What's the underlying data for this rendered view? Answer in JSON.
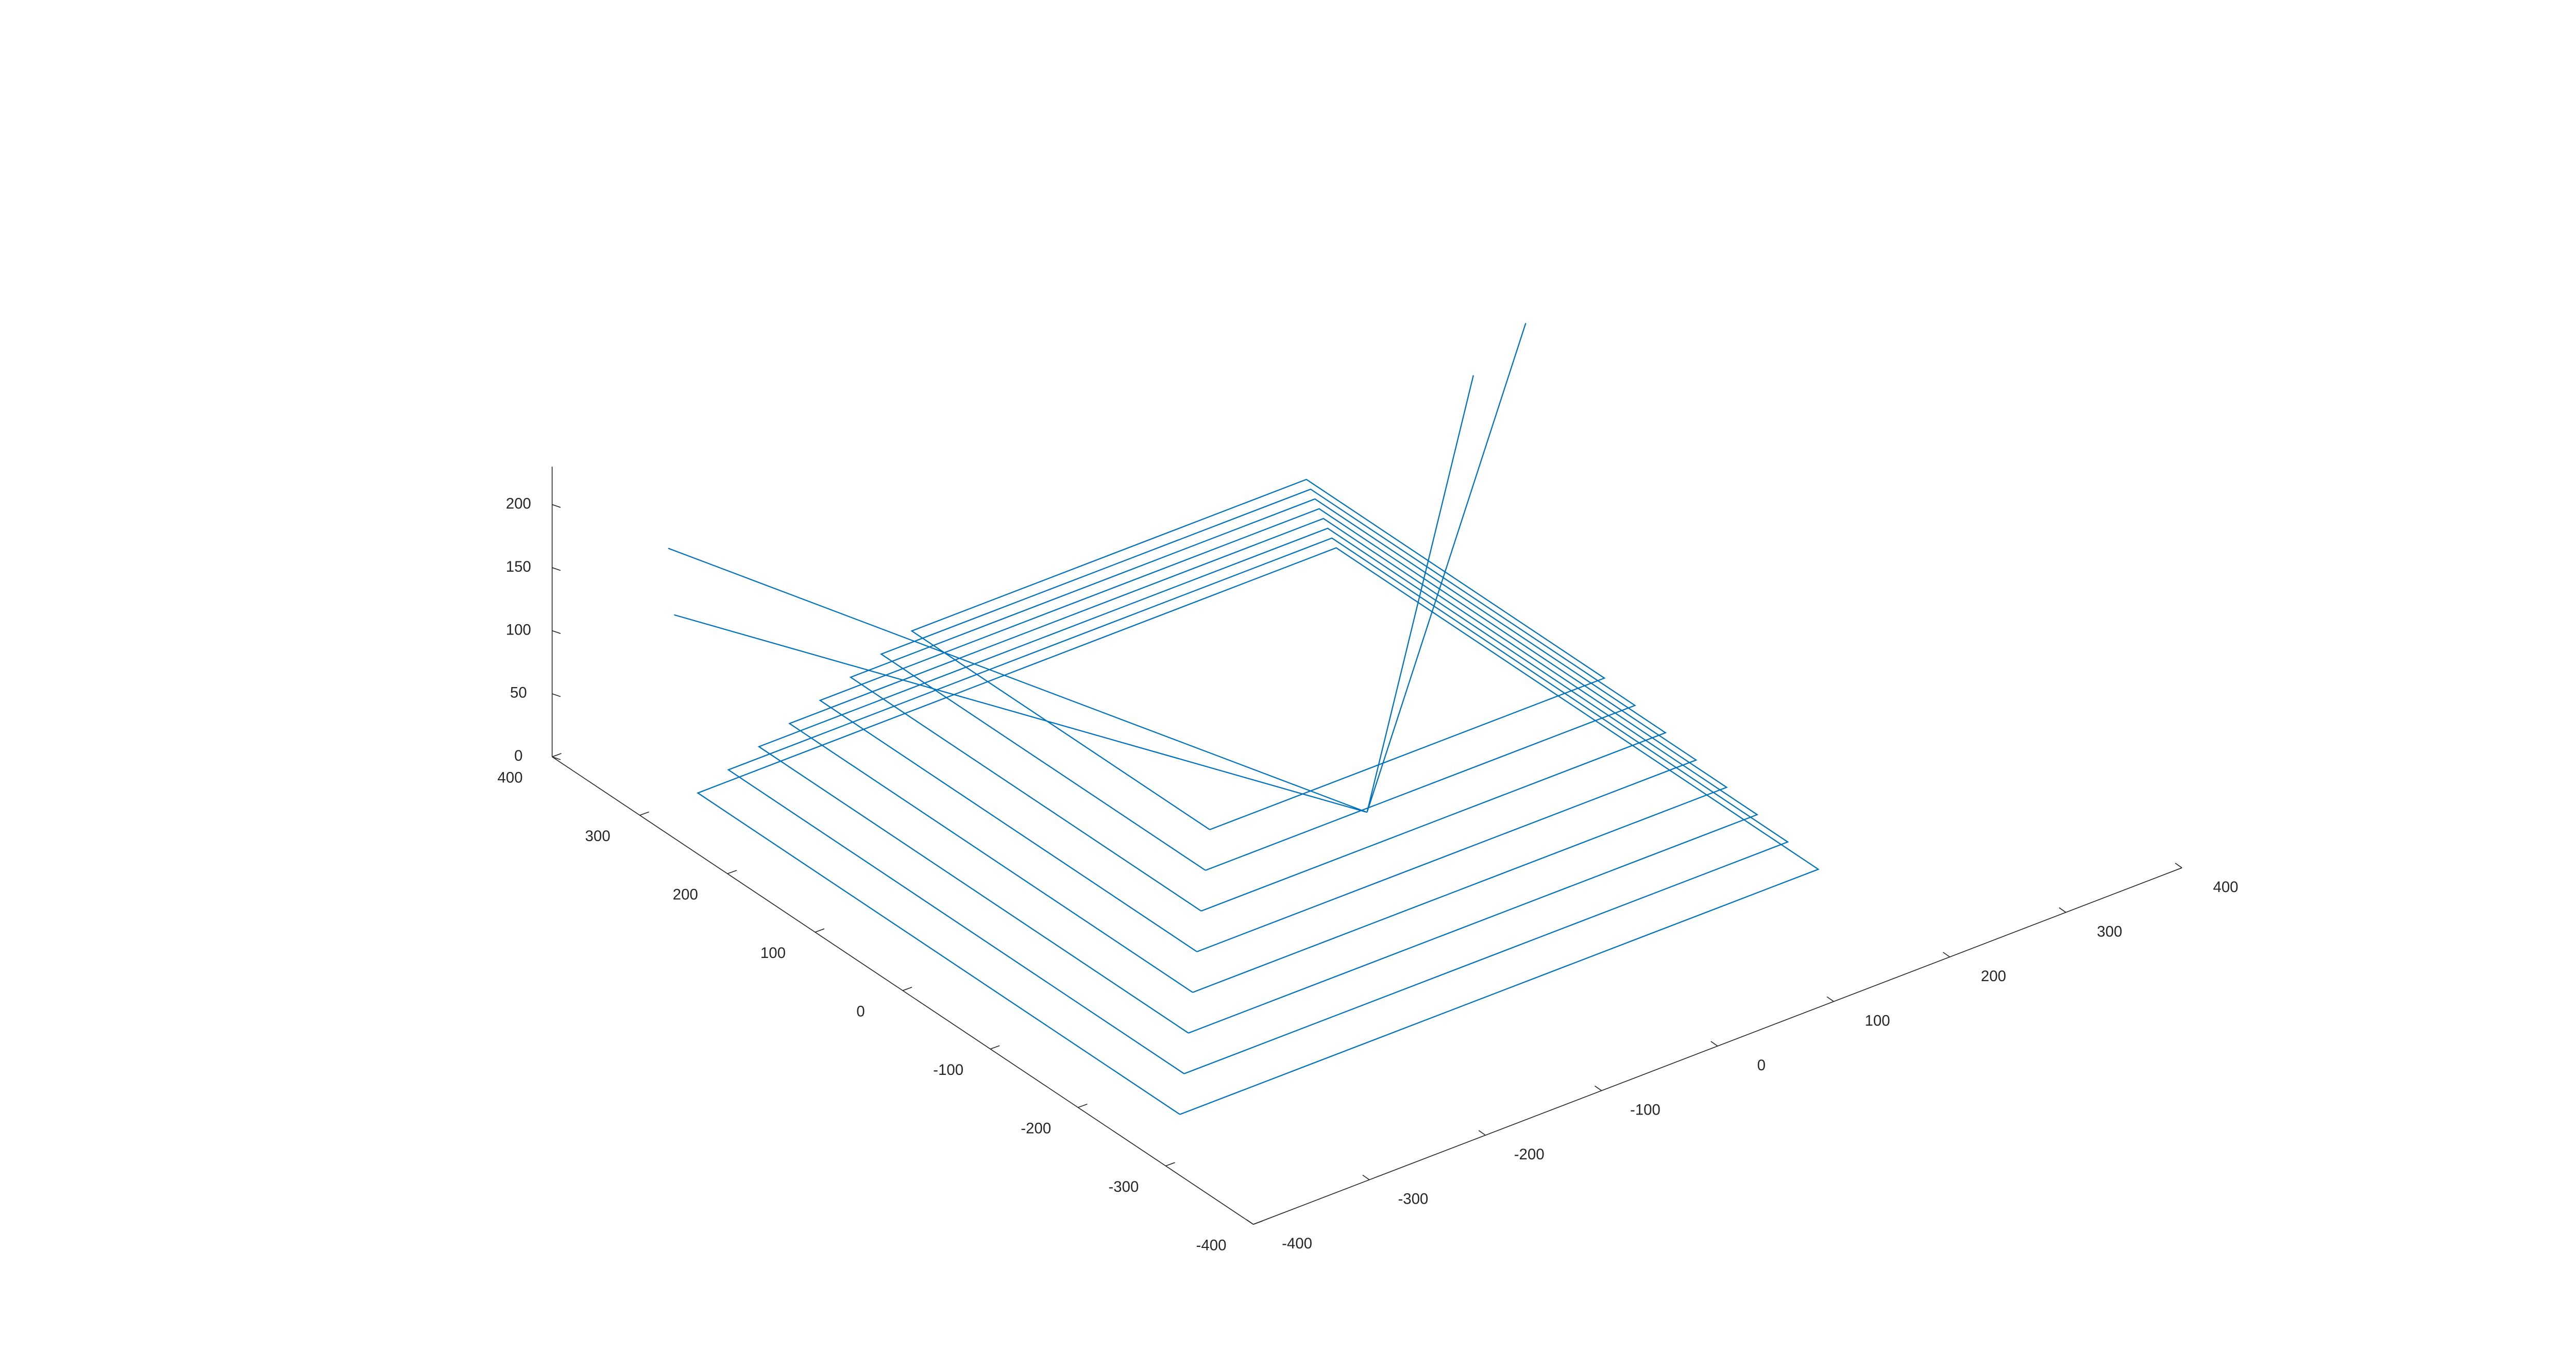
{
  "chart_data": {
    "type": "line3d",
    "color": "#0072bd",
    "xlim": [
      -400,
      400
    ],
    "ylim": [
      -400,
      400
    ],
    "zlim": [
      0,
      230
    ],
    "xticks": [
      -400,
      -300,
      -200,
      -100,
      0,
      100,
      200,
      300,
      400
    ],
    "yticks": [
      -400,
      -300,
      -200,
      -100,
      0,
      100,
      200,
      300,
      400
    ],
    "zticks": [
      0,
      50,
      100,
      150,
      200
    ],
    "x": [
      -350,
      200,
      200,
      -350,
      -350,
      null,
      -335,
      185,
      185,
      -335,
      -335,
      null,
      -320,
      170,
      170,
      -320,
      -320,
      null,
      -305,
      155,
      155,
      -305,
      -305,
      null,
      -290,
      140,
      140,
      -290,
      -290,
      null,
      -275,
      125,
      125,
      -275,
      -275,
      null,
      -260,
      110,
      110,
      -260,
      -260,
      null,
      -245,
      95,
      95,
      -245,
      -245,
      null,
      0,
      250,
      null,
      0,
      220,
      null,
      0,
      -300,
      null,
      0,
      -310
    ],
    "y": [
      -250,
      -250,
      300,
      300,
      -250,
      null,
      -235,
      -235,
      285,
      285,
      -235,
      null,
      -220,
      -220,
      270,
      270,
      -220,
      null,
      -205,
      -205,
      255,
      255,
      -205,
      null,
      -190,
      -190,
      240,
      240,
      -190,
      null,
      -175,
      -175,
      225,
      225,
      -175,
      null,
      -160,
      -160,
      210,
      210,
      -160,
      null,
      -145,
      -145,
      195,
      195,
      -145,
      null,
      0,
      150,
      null,
      0,
      170,
      null,
      0,
      400,
      null,
      0,
      380
    ],
    "z": [
      0,
      0,
      0,
      0,
      0,
      null,
      20,
      20,
      20,
      20,
      20,
      null,
      40,
      40,
      40,
      40,
      40,
      null,
      60,
      60,
      60,
      60,
      60,
      null,
      80,
      80,
      80,
      80,
      80,
      null,
      100,
      100,
      100,
      100,
      100,
      null,
      120,
      120,
      120,
      120,
      120,
      null,
      140,
      140,
      140,
      140,
      140,
      null,
      0,
      230,
      null,
      0,
      190,
      null,
      0,
      130,
      null,
      0,
      90
    ]
  }
}
